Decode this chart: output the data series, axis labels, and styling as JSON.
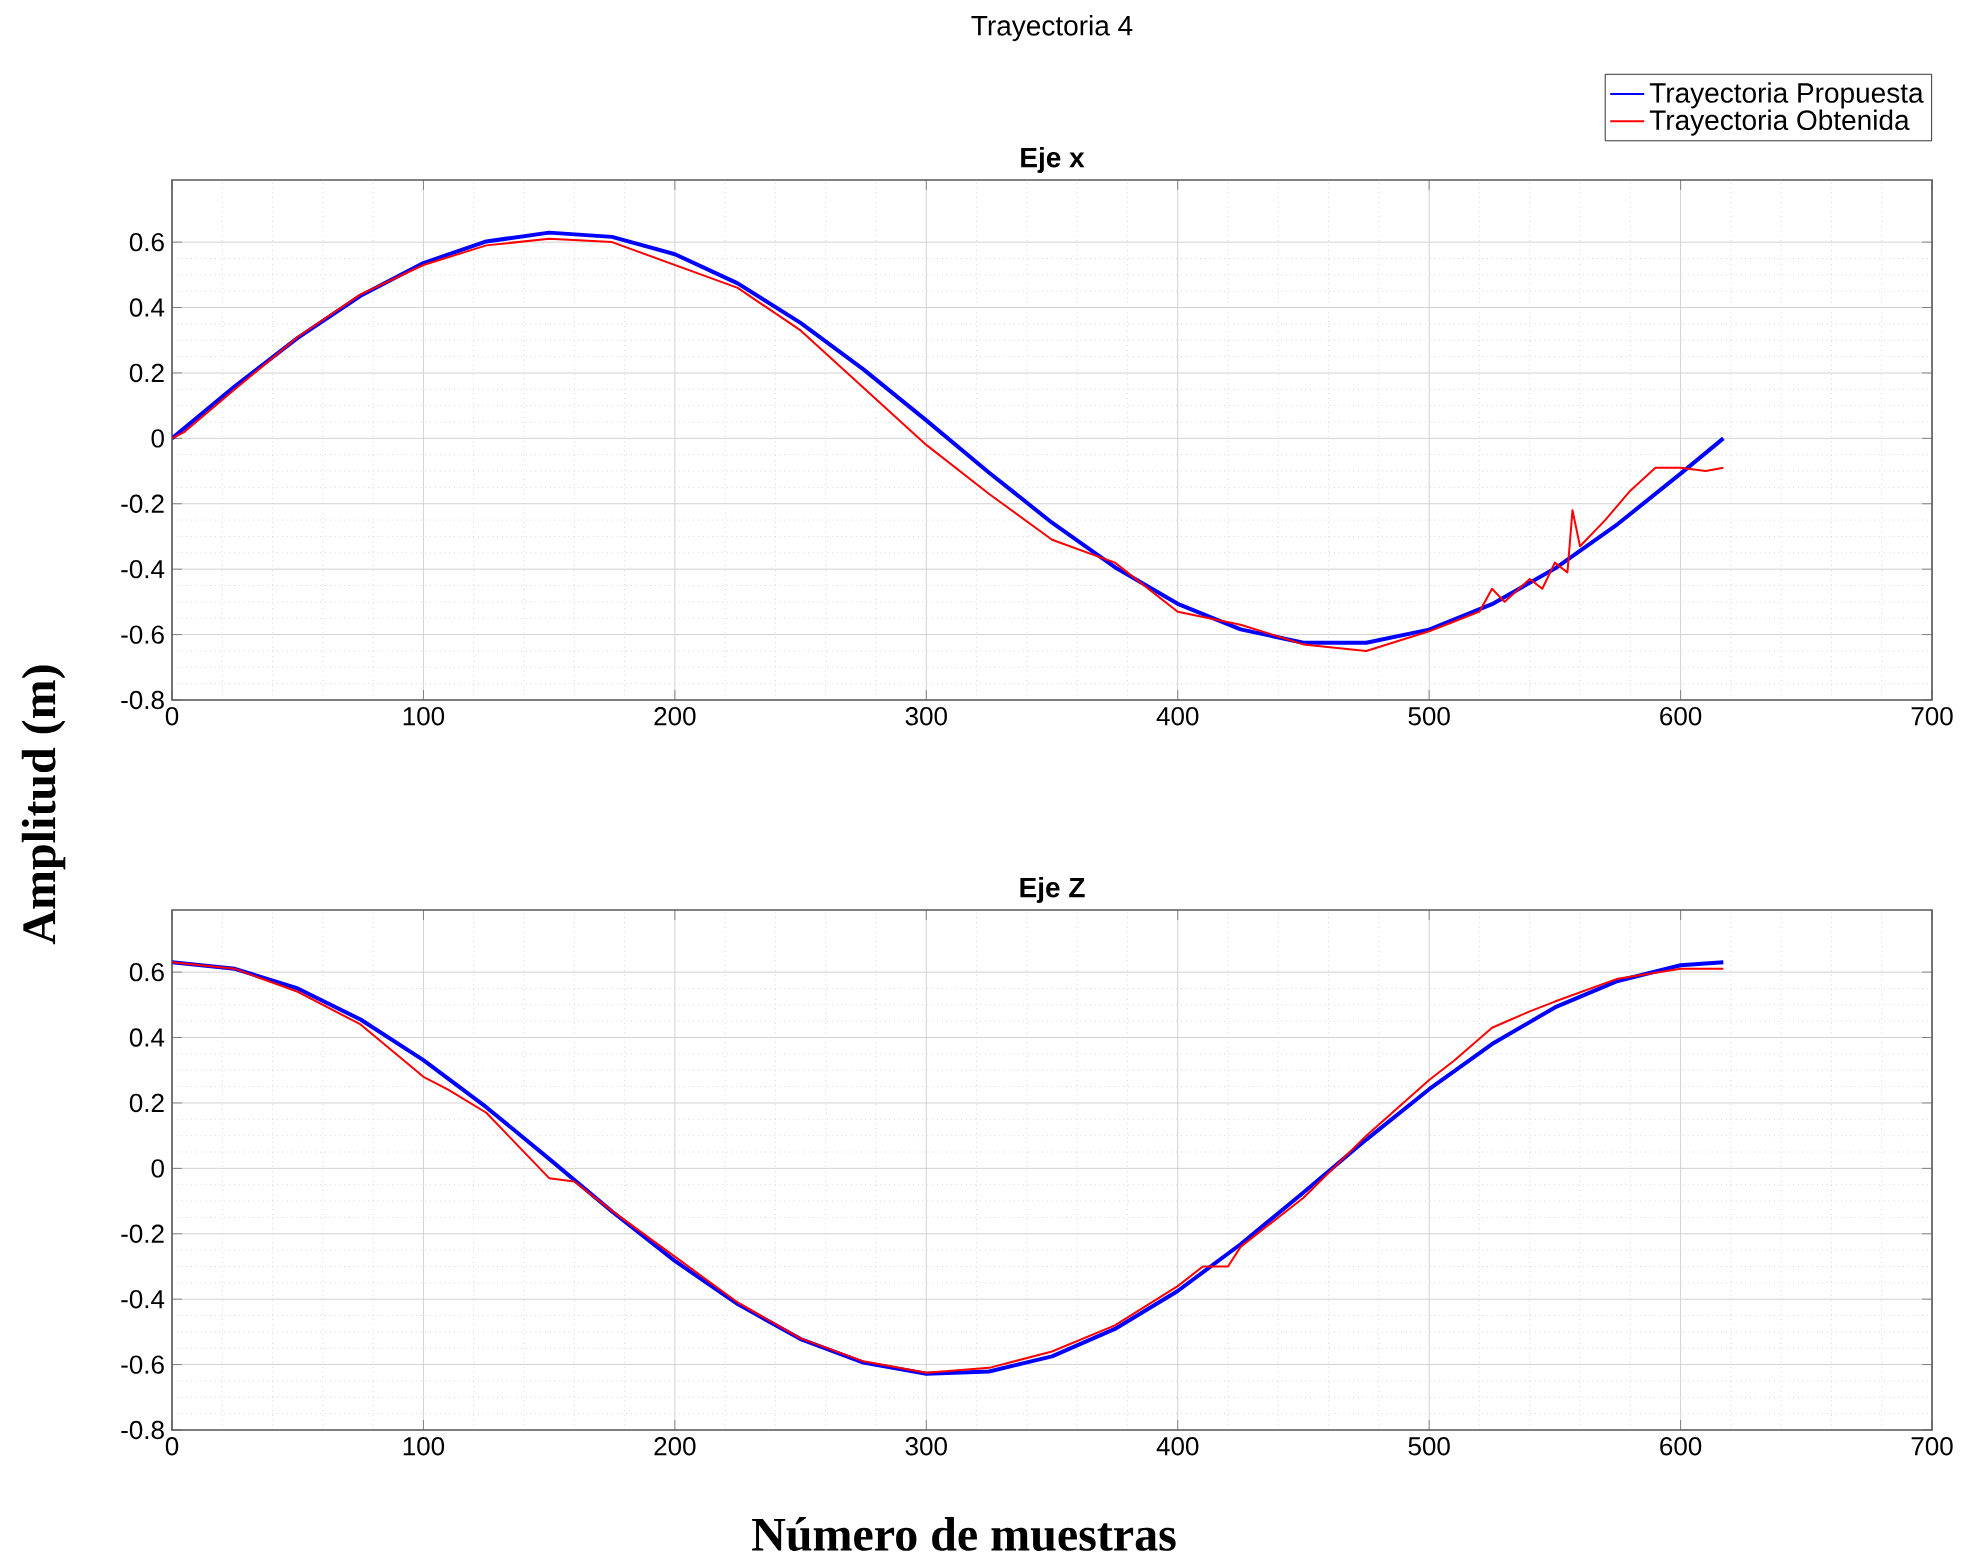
{
  "chart_data": [
    {
      "type": "line",
      "title": "Eje x",
      "ylabel": "Amplitud (m)",
      "annotations": [
        "Trayectoria 4"
      ],
      "grid": true,
      "legend": "top right",
      "xlim": [
        0,
        700
      ],
      "xticks": [
        0,
        100,
        200,
        300,
        400,
        500,
        600,
        700
      ],
      "ylim": [
        -0.8,
        0.79
      ],
      "yticks": [
        -0.8,
        -0.6,
        -0.4,
        -0.2,
        0,
        0.2,
        0.4,
        0.6
      ],
      "series": [
        {
          "name": "Trayectoria Propuesta",
          "color": "#0000ff",
          "x": [
            0,
            25,
            50,
            75,
            100,
            125,
            150,
            175,
            200,
            225,
            250,
            275,
            300,
            325,
            350,
            375,
            400,
            425,
            450,
            475,
            500,
            525,
            550,
            575,
            600,
            617
          ],
          "values": [
            0,
            0.159,
            0.307,
            0.436,
            0.536,
            0.602,
            0.629,
            0.616,
            0.563,
            0.474,
            0.353,
            0.211,
            0.055,
            -0.105,
            -0.258,
            -0.394,
            -0.506,
            -0.584,
            -0.625,
            -0.625,
            -0.585,
            -0.507,
            -0.398,
            -0.262,
            -0.108,
            0
          ]
        },
        {
          "name": "Trayectoria Obtenida",
          "color": "#ff0000",
          "x": [
            0,
            5,
            25,
            50,
            75,
            100,
            125,
            150,
            175,
            200,
            225,
            250,
            275,
            300,
            325,
            350,
            375,
            400,
            425,
            450,
            475,
            500,
            510,
            520,
            525,
            530,
            540,
            545,
            550,
            555,
            557,
            560,
            570,
            580,
            590,
            600,
            610,
            617
          ],
          "values": [
            0,
            0.02,
            0.15,
            0.31,
            0.44,
            0.53,
            0.59,
            0.61,
            0.6,
            0.53,
            0.46,
            0.33,
            0.155,
            -0.02,
            -0.17,
            -0.31,
            -0.38,
            -0.53,
            -0.57,
            -0.63,
            -0.65,
            -0.59,
            -0.56,
            -0.53,
            -0.46,
            -0.5,
            -0.43,
            -0.46,
            -0.38,
            -0.41,
            -0.22,
            -0.33,
            -0.25,
            -0.16,
            -0.09,
            -0.09,
            -0.1,
            -0.09
          ]
        }
      ]
    },
    {
      "type": "line",
      "title": "Eje Z",
      "xlabel": "Número de muestras",
      "grid": true,
      "xlim": [
        0,
        700
      ],
      "xticks": [
        0,
        100,
        200,
        300,
        400,
        500,
        600,
        700
      ],
      "ylim": [
        -0.8,
        0.79
      ],
      "yticks": [
        -0.8,
        -0.6,
        -0.4,
        -0.2,
        0,
        0.2,
        0.4,
        0.6
      ],
      "series": [
        {
          "color": "#0000ff",
          "x": [
            0,
            25,
            50,
            75,
            100,
            125,
            150,
            175,
            200,
            225,
            250,
            275,
            300,
            325,
            350,
            375,
            400,
            425,
            450,
            475,
            500,
            525,
            550,
            575,
            600,
            617
          ],
          "values": [
            0.63,
            0.61,
            0.55,
            0.455,
            0.331,
            0.187,
            0.029,
            -0.132,
            -0.283,
            -0.415,
            -0.522,
            -0.594,
            -0.628,
            -0.621,
            -0.575,
            -0.491,
            -0.375,
            -0.232,
            -0.074,
            0.088,
            0.242,
            0.38,
            0.492,
            0.573,
            0.621,
            0.63
          ]
        },
        {
          "color": "#ff0000",
          "x": [
            0,
            25,
            50,
            75,
            100,
            110,
            125,
            150,
            160,
            175,
            200,
            225,
            250,
            275,
            300,
            325,
            350,
            375,
            400,
            410,
            420,
            425,
            450,
            475,
            500,
            510,
            525,
            540,
            550,
            575,
            600,
            617
          ],
          "values": [
            0.63,
            0.61,
            0.54,
            0.44,
            0.28,
            0.24,
            0.17,
            -0.03,
            -0.04,
            -0.13,
            -0.27,
            -0.41,
            -0.52,
            -0.59,
            -0.625,
            -0.61,
            -0.56,
            -0.48,
            -0.36,
            -0.3,
            -0.3,
            -0.24,
            -0.09,
            0.1,
            0.27,
            0.33,
            0.43,
            0.48,
            0.51,
            0.58,
            0.61,
            0.61
          ]
        }
      ]
    }
  ]
}
